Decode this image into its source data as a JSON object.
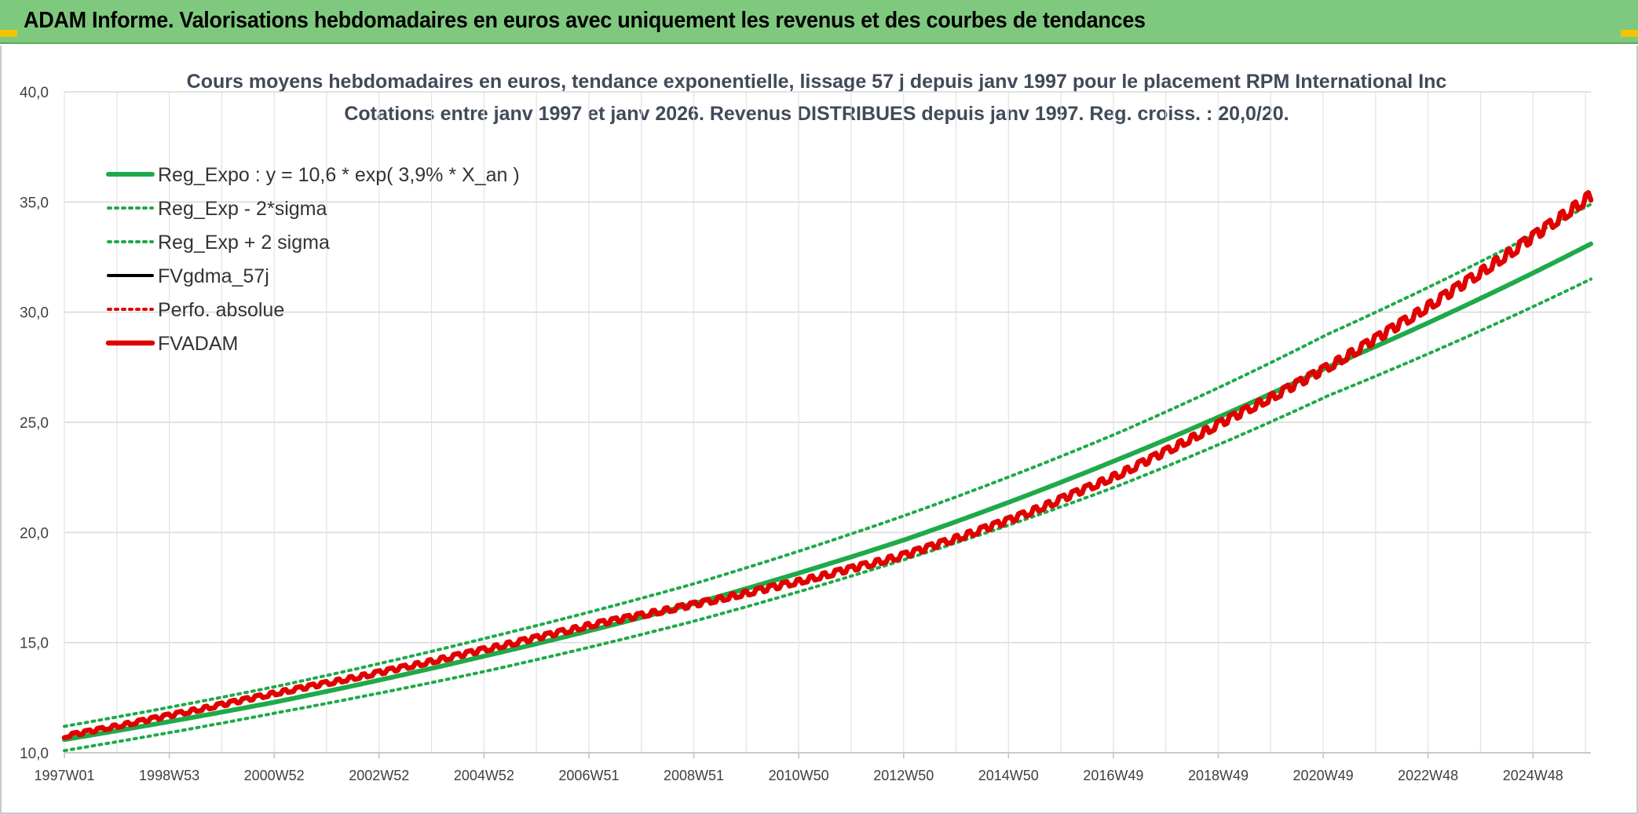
{
  "header": {
    "title": "ADAM Informe. Valorisations hebdomadaires en euros avec uniquement les revenus et des courbes de tendances"
  },
  "chart_data": {
    "type": "line",
    "title": "Cours moyens hebdomadaires en euros, tendance exponentielle, lissage 57 j depuis janv 1997 pour le placement RPM International Inc",
    "subtitle": "Cotations entre janv 1997 et janv 2026. Revenus DISTRIBUES depuis janv 1997. Reg. croiss. : 20,0/20.",
    "ylim": [
      10,
      40
    ],
    "yticks": [
      "10,0",
      "15,0",
      "20,0",
      "25,0",
      "30,0",
      "35,0",
      "40,0"
    ],
    "xlim_years": [
      1997.0,
      2026.0
    ],
    "xticks": [
      "1997W01",
      "1998W53",
      "2000W52",
      "2002W52",
      "2004W52",
      "2006W51",
      "2008W51",
      "2010W50",
      "2012W50",
      "2014W50",
      "2016W49",
      "2018W49",
      "2020W49",
      "2022W48",
      "2024W48"
    ],
    "grid": true,
    "legend_position": "top-left",
    "series": [
      {
        "name": "Reg_Expo : y = 10,6 * exp( 3,9% *  X_an )",
        "color": "#1faa4a",
        "style": "solid-thick",
        "x": [
          1997,
          2001,
          2005,
          2009,
          2013,
          2017,
          2021,
          2026
        ],
        "y": [
          10.6,
          12.3,
          14.4,
          16.8,
          19.7,
          23.3,
          27.5,
          33.1
        ]
      },
      {
        "name": "Reg_Exp - 2*sigma",
        "color": "#1faa4a",
        "style": "dotted",
        "x": [
          1997,
          2001,
          2005,
          2009,
          2013,
          2017,
          2021,
          2026
        ],
        "y": [
          10.1,
          11.8,
          13.7,
          16.0,
          18.8,
          22.1,
          26.2,
          31.5
        ]
      },
      {
        "name": "Reg_Exp + 2 sigma",
        "color": "#1faa4a",
        "style": "dotted",
        "x": [
          1997,
          2001,
          2005,
          2009,
          2013,
          2017,
          2021,
          2026
        ],
        "y": [
          11.2,
          13.0,
          15.2,
          17.7,
          20.8,
          24.5,
          29.0,
          34.9
        ]
      },
      {
        "name": "FVgdma_57j",
        "color": "#000000",
        "style": "solid",
        "x": [],
        "y": []
      },
      {
        "name": "Perfo. absolue",
        "color": "#e00000",
        "style": "dotted",
        "x": [],
        "y": []
      },
      {
        "name": "FVADAM",
        "color": "#e00000",
        "style": "solid-thick-stepped",
        "x": [
          1997,
          1999,
          2001,
          2003,
          2005,
          2007,
          2009,
          2011,
          2013,
          2015,
          2017,
          2019,
          2021,
          2023,
          2026
        ],
        "y": [
          10.75,
          11.7,
          12.7,
          13.65,
          14.7,
          15.8,
          16.75,
          17.8,
          19.0,
          20.6,
          22.6,
          25.0,
          27.5,
          30.4,
          35.3
        ]
      }
    ]
  }
}
